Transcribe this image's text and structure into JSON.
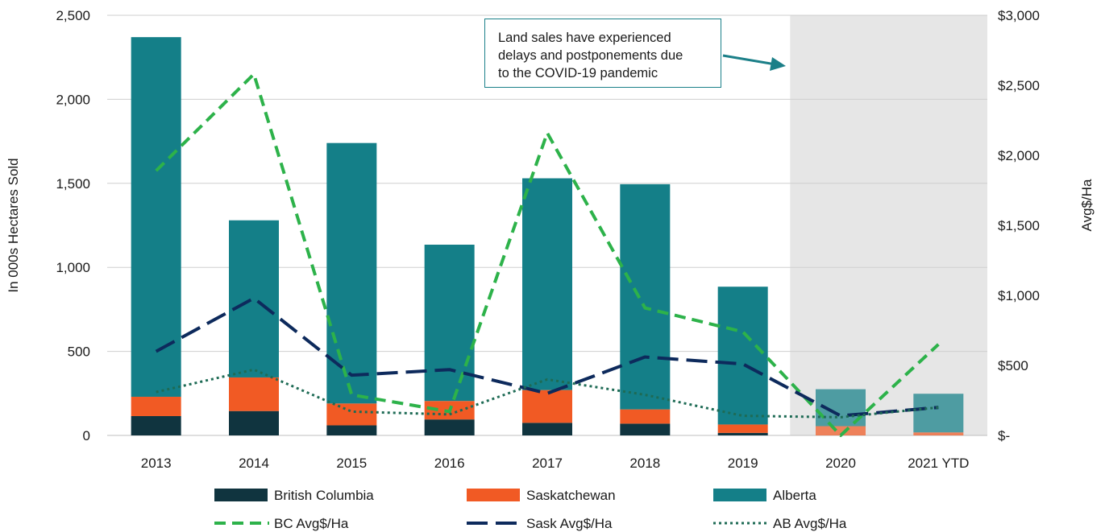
{
  "chart_data": {
    "type": "bar",
    "stacked": true,
    "categories": [
      "2013",
      "2014",
      "2015",
      "2016",
      "2017",
      "2018",
      "2019",
      "2020",
      "2021 YTD"
    ],
    "ylabel": "In 000s Hectares Sold",
    "y2label": "Avg$/Ha",
    "ylim": [
      0,
      2500
    ],
    "y2lim": [
      0,
      3000
    ],
    "yticks": [
      "0",
      "500",
      "1,000",
      "1,500",
      "2,000",
      "2,500"
    ],
    "y2ticks": [
      "$-",
      "$500",
      "$1,000",
      "$1,500",
      "$2,000",
      "$2,500",
      "$3,000"
    ],
    "grid": true,
    "legend_position": "bottom",
    "shaded_categories": [
      "2020",
      "2021 YTD"
    ],
    "annotation": "Land sales have experienced delays and postponements due to the COVID-19 pandemic",
    "annotation_lines": [
      "Land sales have experienced",
      "delays and postponements due",
      "to the COVID-19 pandemic"
    ],
    "bar_series": [
      {
        "name": "British Columbia",
        "color": "#10343f",
        "values": [
          115,
          145,
          60,
          95,
          75,
          70,
          15,
          0,
          0
        ]
      },
      {
        "name": "Saskatchewan",
        "color": "#f15a24",
        "values": [
          115,
          200,
          130,
          110,
          195,
          85,
          50,
          55,
          18
        ]
      },
      {
        "name": "Alberta",
        "color": "#147f88",
        "values": [
          2140,
          935,
          1550,
          930,
          1260,
          1340,
          820,
          220,
          230
        ]
      }
    ],
    "line_series": [
      {
        "name": "BC Avg$/Ha",
        "color": "#2db24a",
        "dash": "dashed",
        "values": [
          1890,
          2580,
          290,
          170,
          2160,
          910,
          740,
          0,
          650
        ]
      },
      {
        "name": "Sask Avg$/Ha",
        "color": "#0d2a5c",
        "dash": "longdash",
        "values": [
          600,
          980,
          430,
          470,
          300,
          560,
          510,
          140,
          200
        ]
      },
      {
        "name": "AB Avg$/Ha",
        "color": "#1e6b55",
        "dash": "dotted",
        "values": [
          310,
          470,
          170,
          150,
          400,
          290,
          140,
          130,
          200
        ]
      }
    ]
  }
}
